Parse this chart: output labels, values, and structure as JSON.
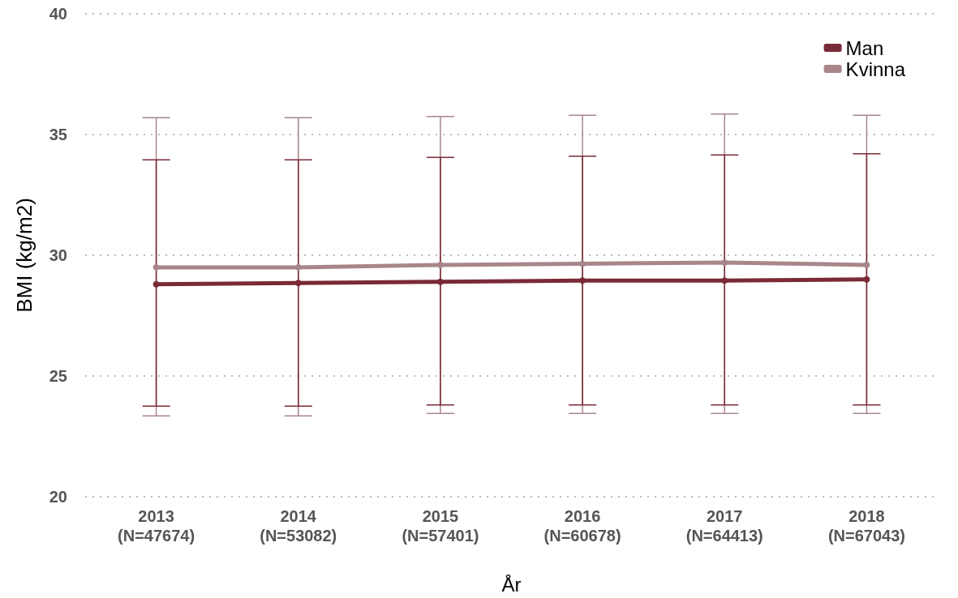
{
  "chart_data": {
    "type": "line",
    "xlabel": "År",
    "ylabel": "BMI (kg/m2)",
    "categories": [
      "2013\n(N=47674)",
      "2014\n(N=53082)",
      "2015\n(N=57401)",
      "2016\n(N=60678)",
      "2017\n(N=64413)",
      "2018\n(N=67043)"
    ],
    "series": [
      {
        "name": "Man",
        "color": "#7a2a36",
        "values": [
          28.8,
          28.85,
          28.9,
          28.95,
          28.95,
          29.0
        ],
        "errors": [
          [
            23.75,
            33.95
          ],
          [
            23.75,
            33.95
          ],
          [
            23.8,
            34.05
          ],
          [
            23.8,
            34.1
          ],
          [
            23.8,
            34.15
          ],
          [
            23.8,
            34.2
          ]
        ]
      },
      {
        "name": "Kvinna",
        "color": "#a8868a",
        "values": [
          29.5,
          29.5,
          29.6,
          29.65,
          29.7,
          29.6
        ],
        "errors": [
          [
            23.35,
            35.7
          ],
          [
            23.35,
            35.7
          ],
          [
            23.45,
            35.75
          ],
          [
            23.45,
            35.8
          ],
          [
            23.45,
            35.85
          ],
          [
            23.45,
            35.8
          ]
        ]
      }
    ],
    "ylim": [
      20,
      40
    ],
    "yticks": [
      20,
      25,
      30,
      35,
      40
    ],
    "grid": "y",
    "legend": "top right",
    "marker": "circle",
    "line_style": "solid"
  }
}
